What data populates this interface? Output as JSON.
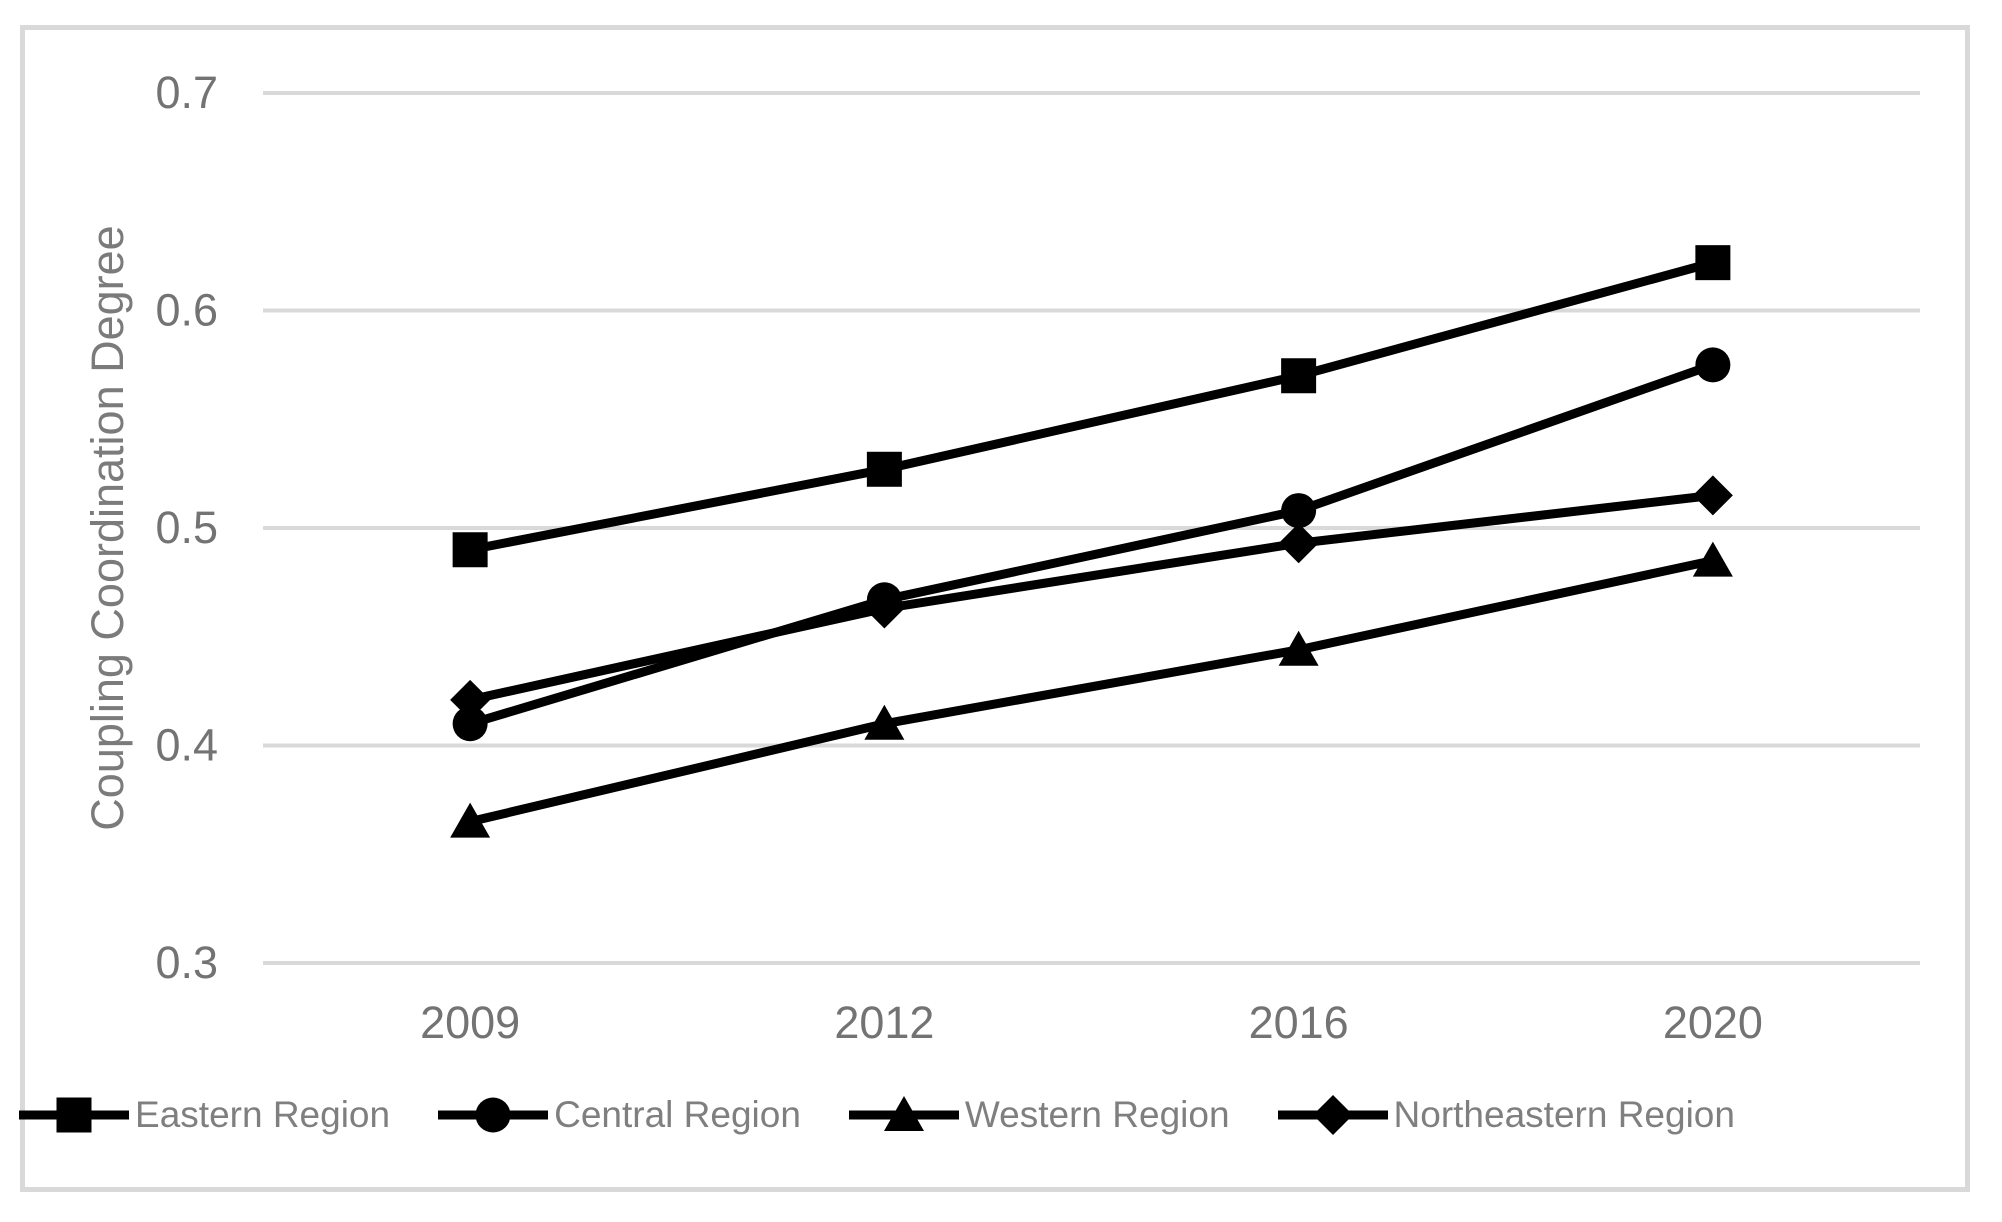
{
  "figure": {
    "background_color": "#ffffff",
    "border_color": "#d9d9d9"
  },
  "chart_data": {
    "type": "line",
    "title": "",
    "xlabel": "",
    "ylabel": "Coupling Coordination Degree",
    "categories": [
      "2009",
      "2012",
      "2016",
      "2020"
    ],
    "series": [
      {
        "name": "Eastern Region",
        "marker": "square",
        "color": "#000000",
        "values": [
          0.49,
          0.527,
          0.57,
          0.622
        ]
      },
      {
        "name": "Central Region",
        "marker": "circle",
        "color": "#000000",
        "values": [
          0.41,
          0.467,
          0.508,
          0.575
        ]
      },
      {
        "name": "Western Region",
        "marker": "triangle",
        "color": "#000000",
        "values": [
          0.365,
          0.41,
          0.444,
          0.485
        ]
      },
      {
        "name": "Northeastern Region",
        "marker": "diamond",
        "color": "#000000",
        "values": [
          0.421,
          0.463,
          0.493,
          0.515
        ]
      }
    ],
    "y_ticks": [
      0.3,
      0.4,
      0.5,
      0.6,
      0.7
    ],
    "y_tick_labels": [
      "0.3",
      "0.4",
      "0.5",
      "0.6",
      "0.7"
    ],
    "ylim": [
      0.3,
      0.7
    ],
    "grid": "horizontal",
    "grid_color": "#d9d9d9",
    "axis_text_color": "#737373",
    "legend_position": "bottom",
    "legend_text_color": "#7f7f7f"
  }
}
